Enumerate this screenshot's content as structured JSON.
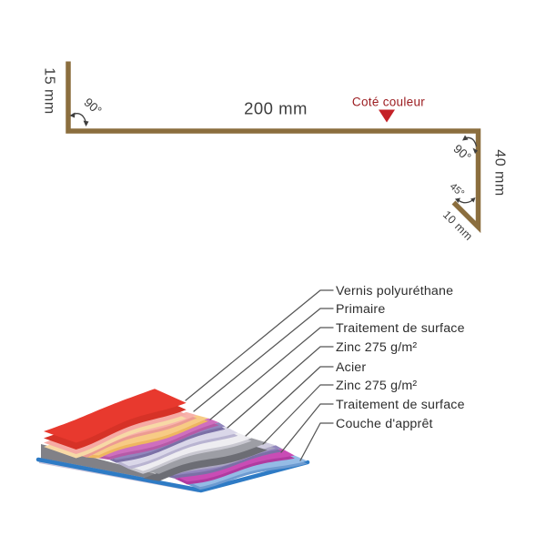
{
  "profile": {
    "dim_left": "15 mm",
    "dim_top": "200 mm",
    "dim_right": "40 mm",
    "dim_return": "10 mm",
    "angle_left": "90°",
    "angle_right": "90°",
    "angle_return": "45°",
    "color_side_label": "Coté couleur",
    "line_color": "#8B6E3E",
    "marker_color": "#C42127",
    "label_color": "#9B1B1F",
    "dim_text_color": "#3E3E3E"
  },
  "stack": {
    "labels": [
      "Vernis polyuréthane",
      "Primaire",
      "Traitement de surface",
      "Zinc 275 g/m²",
      "Acier",
      "Zinc 275 g/m²",
      "Traitement de surface",
      "Couche d'apprêt"
    ],
    "band_colors": [
      "#E8392E",
      "#F8B2AA",
      "#F7CB85",
      "#CE6FBE",
      "#9186BD",
      "#DAD7E9",
      "#EEEDF1",
      "#9D9EA5",
      "#CFCCDF",
      "#9186BD",
      "#C94CB5",
      "#94BBE5"
    ],
    "band_shadows": [
      "#D22C22",
      "#EC9B92",
      "#EEB660",
      "#B65AA7",
      "#7B70A6",
      "#B9B4D1",
      "#C9C8D1",
      "#6C6D74",
      "#AAA5C2",
      "#7B70A6",
      "#B03A9F",
      "#6D9BD1"
    ],
    "vernis_slab": {
      "face": "#D63227",
      "primer_strip": "#F6AAA4",
      "surface_strip": "#F7D9A6"
    },
    "underside": {
      "steel_face": "#818187",
      "primer_strip": "#C7C3DA",
      "base_rim": "#2E7BC5"
    },
    "leader_color": "#555555",
    "label_color": "#2D2D2D"
  }
}
